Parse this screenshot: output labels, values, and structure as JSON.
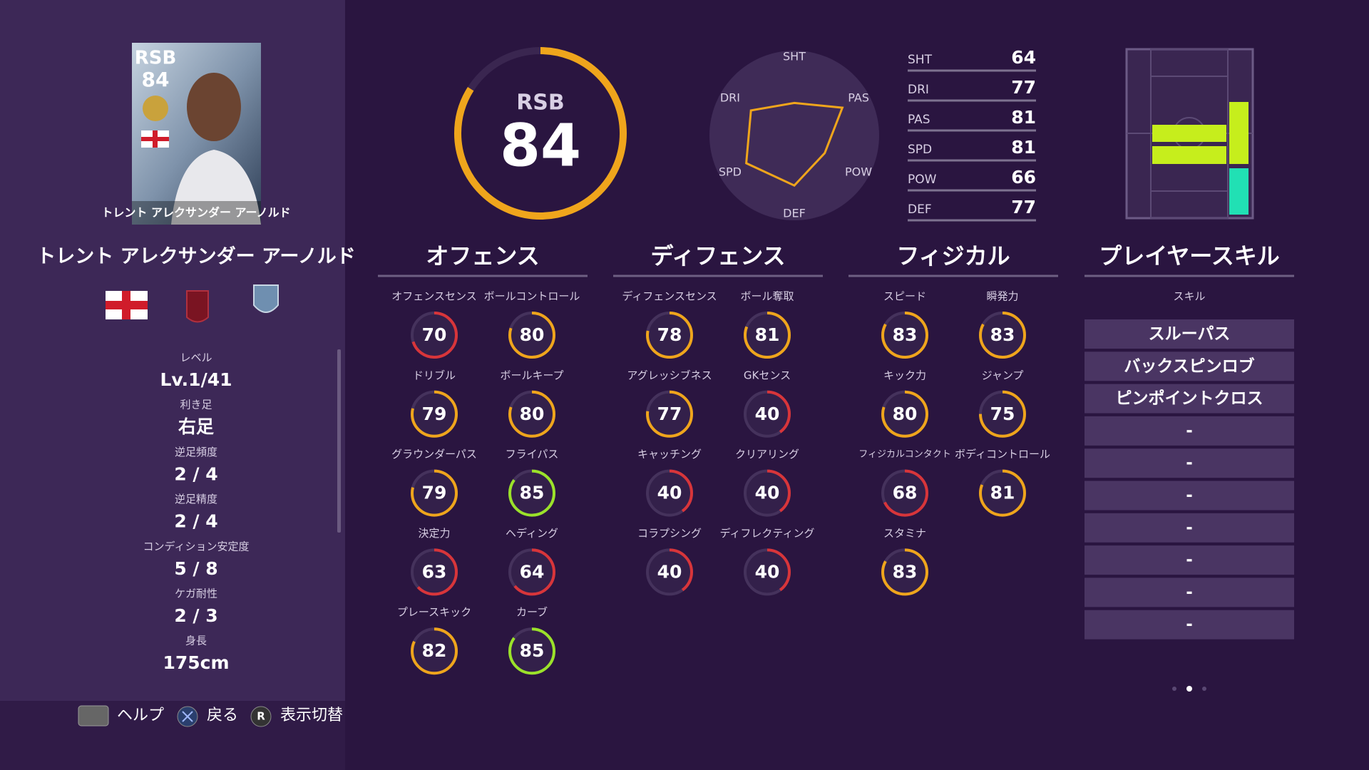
{
  "player": {
    "card_position": "RSB",
    "card_rating": 84,
    "card_name": "トレント アレクサンダー アーノルド",
    "name": "トレント アレクサンダー アーノルド"
  },
  "info": [
    {
      "label": "レベル",
      "value": "Lv.1/41"
    },
    {
      "label": "利き足",
      "value": "右足"
    },
    {
      "label": "逆足頻度",
      "value": "2 / 4"
    },
    {
      "label": "逆足精度",
      "value": "2 / 4"
    },
    {
      "label": "コンディション安定度",
      "value": "5 / 8"
    },
    {
      "label": "ケガ耐性",
      "value": "2 / 3"
    },
    {
      "label": "身長",
      "value": "175cm"
    }
  ],
  "rating": {
    "position": "RSB",
    "overall": 84
  },
  "stats": [
    {
      "name": "SHT",
      "value": 64
    },
    {
      "name": "DRI",
      "value": 77
    },
    {
      "name": "PAS",
      "value": 81
    },
    {
      "name": "SPD",
      "value": 81
    },
    {
      "name": "POW",
      "value": 66
    },
    {
      "name": "DEF",
      "value": 77
    }
  ],
  "sections": [
    {
      "title": "オフェンス",
      "items": [
        {
          "label": "オフェンスセンス",
          "value": 70
        },
        {
          "label": "ボールコントロール",
          "value": 80
        },
        {
          "label": "ドリブル",
          "value": 79
        },
        {
          "label": "ボールキープ",
          "value": 80
        },
        {
          "label": "グラウンダーパス",
          "value": 79
        },
        {
          "label": "フライパス",
          "value": 85
        },
        {
          "label": "決定力",
          "value": 63
        },
        {
          "label": "ヘディング",
          "value": 64
        },
        {
          "label": "プレースキック",
          "value": 82
        },
        {
          "label": "カーブ",
          "value": 85
        }
      ]
    },
    {
      "title": "ディフェンス",
      "items": [
        {
          "label": "ディフェンスセンス",
          "value": 78
        },
        {
          "label": "ボール奪取",
          "value": 81
        },
        {
          "label": "アグレッシブネス",
          "value": 77
        },
        {
          "label": "GKセンス",
          "value": 40
        },
        {
          "label": "キャッチング",
          "value": 40
        },
        {
          "label": "クリアリング",
          "value": 40
        },
        {
          "label": "コラプシング",
          "value": 40
        },
        {
          "label": "ディフレクティング",
          "value": 40
        }
      ]
    },
    {
      "title": "フィジカル",
      "items": [
        {
          "label": "スピード",
          "value": 83
        },
        {
          "label": "瞬発力",
          "value": 83
        },
        {
          "label": "キック力",
          "value": 80
        },
        {
          "label": "ジャンプ",
          "value": 75
        },
        {
          "label": "フィジカルコンタクト",
          "value": 68
        },
        {
          "label": "ボディコントロール",
          "value": 81
        },
        {
          "label": "スタミナ",
          "value": 83
        }
      ]
    }
  ],
  "skills": {
    "title": "プレイヤースキル",
    "subtitle": "スキル",
    "items": [
      "スルーパス",
      "バックスピンロブ",
      "ピンポイントクロス",
      "-",
      "-",
      "-",
      "-",
      "-",
      "-",
      "-"
    ]
  },
  "footer": {
    "help": "ヘルプ",
    "back": "戻る",
    "r_key": "R",
    "toggle": "表示切替"
  }
}
